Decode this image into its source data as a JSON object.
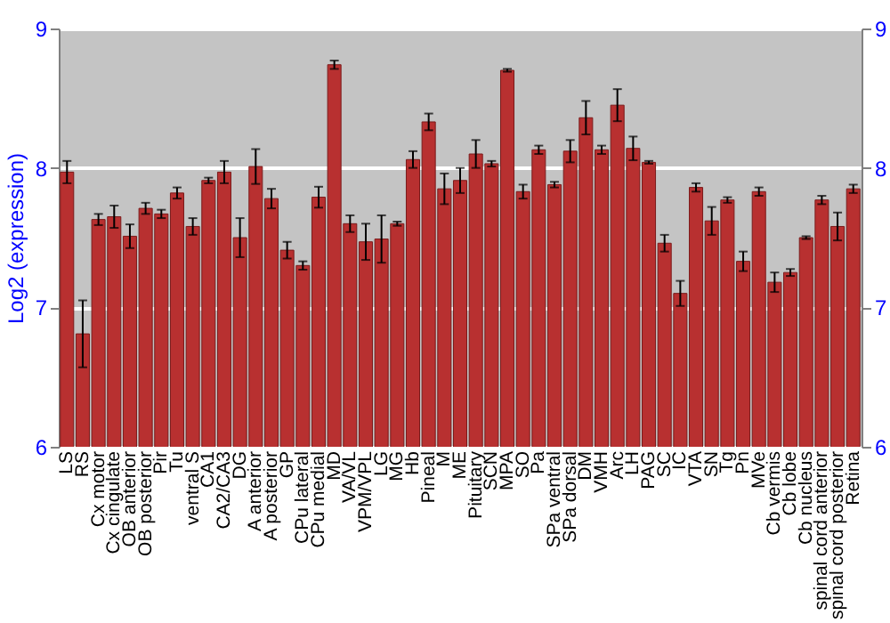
{
  "chart_data": {
    "type": "bar",
    "ylabel": "Log2 (expression)",
    "categories": [
      "LS",
      "RS",
      "Cx motor",
      "Cx cingulate",
      "OB anterior",
      "OB posterior",
      "Pir",
      "Tu",
      "ventral S",
      "CA1",
      "CA2/CA3",
      "DG",
      "A anterior",
      "A posterior",
      "GP",
      "CPu lateral",
      "CPu medial",
      "MD",
      "VA/VL",
      "VPM/VPL",
      "LG",
      "MG",
      "Hb",
      "Pineal",
      "M",
      "ME",
      "Pituitary",
      "SCN",
      "MPA",
      "SO",
      "Pa",
      "SPa ventral",
      "SPa dorsal",
      "DM",
      "VMH",
      "Arc",
      "LH",
      "PAG",
      "SC",
      "IC",
      "VTA",
      "SN",
      "Tg",
      "Pn",
      "MVe",
      "Cb vermis",
      "Cb lobe",
      "Cb nucleus",
      "spinal cord anterior",
      "spinal cord posterior",
      "Retina"
    ],
    "values": [
      7.97,
      6.81,
      7.63,
      7.65,
      7.51,
      7.71,
      7.67,
      7.82,
      7.58,
      7.91,
      7.97,
      7.5,
      8.01,
      7.78,
      7.41,
      7.3,
      7.79,
      8.74,
      7.6,
      7.47,
      7.49,
      7.6,
      8.06,
      8.33,
      7.85,
      7.91,
      8.1,
      8.03,
      8.7,
      7.83,
      8.13,
      7.88,
      8.12,
      8.36,
      8.13,
      8.45,
      8.14,
      8.04,
      7.46,
      7.1,
      7.86,
      7.62,
      7.77,
      7.33,
      7.83,
      7.18,
      7.25,
      7.5,
      7.77,
      7.58,
      7.85
    ],
    "errors": [
      0.08,
      0.24,
      0.04,
      0.08,
      0.085,
      0.04,
      0.03,
      0.04,
      0.06,
      0.02,
      0.08,
      0.14,
      0.125,
      0.07,
      0.06,
      0.03,
      0.075,
      0.03,
      0.06,
      0.13,
      0.17,
      0.015,
      0.06,
      0.06,
      0.11,
      0.09,
      0.1,
      0.02,
      0.01,
      0.05,
      0.03,
      0.02,
      0.08,
      0.12,
      0.03,
      0.115,
      0.085,
      0.01,
      0.06,
      0.09,
      0.03,
      0.1,
      0.02,
      0.07,
      0.03,
      0.07,
      0.025,
      0.01,
      0.03,
      0.1,
      0.03
    ],
    "color": "#b83030",
    "ylim": [
      6,
      9
    ],
    "yticks": [
      6,
      7,
      8,
      9
    ],
    "y2lim": [
      6,
      9
    ],
    "y2ticks": [
      6,
      7,
      8,
      9
    ],
    "grid": "y"
  }
}
